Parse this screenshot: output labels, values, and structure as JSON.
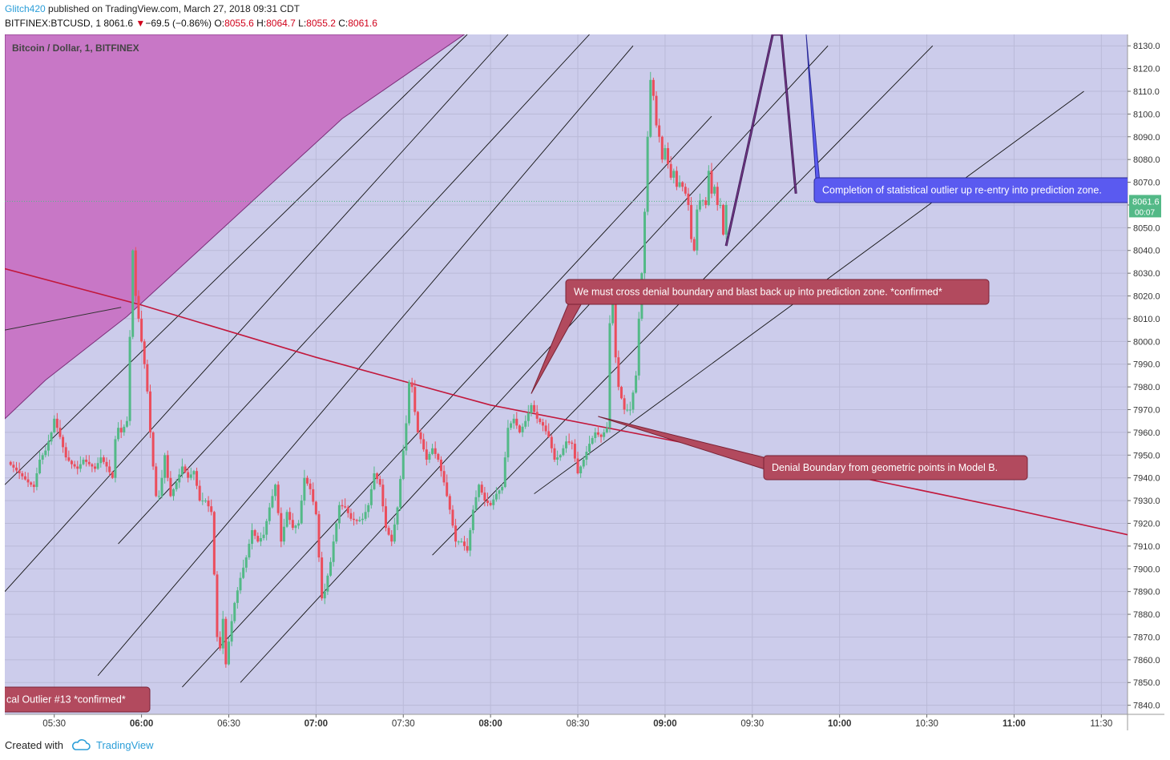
{
  "header": {
    "author": "Glitch420",
    "published_text": "published on TradingView.com, March 27, 2018 09:31 CDT",
    "symbol": "BITFINEX:BTCUSD, 1",
    "last": "8061.6",
    "change": "−69.5 (−0.86%)",
    "o_label": "O:",
    "o_value": "8055.6",
    "h_label": "H:",
    "h_value": "8064.7",
    "l_label": "L:",
    "l_value": "8055.2",
    "c_label": "C:",
    "c_value": "8061.6"
  },
  "footer": {
    "created_with": "Created with",
    "brand": "TradingView"
  },
  "colors": {
    "up": "#53b987",
    "down": "#eb4d5c",
    "background": "#cccceb",
    "magenta_zone": "#c877c6",
    "denial_line": "#c2183c",
    "price_badge": "#53b987",
    "callout_red": "#b24a5e",
    "callout_blue": "#5a5af0"
  },
  "chart_data": {
    "type": "candlestick",
    "title": "Bitcoin / Dollar, 1, BITFINEX",
    "ylim": [
      7836,
      8135
    ],
    "y_ticks": [
      "8130.0",
      "8120.0",
      "8110.0",
      "8100.0",
      "8090.0",
      "8080.0",
      "8070.0",
      "8060.0",
      "8050.0",
      "8040.0",
      "8030.0",
      "8020.0",
      "8010.0",
      "8000.0",
      "7990.0",
      "7980.0",
      "7970.0",
      "7960.0",
      "7950.0",
      "7940.0",
      "7930.0",
      "7920.0",
      "7910.0",
      "7900.0",
      "7890.0",
      "7880.0",
      "7870.0",
      "7860.0",
      "7850.0",
      "7840.0"
    ],
    "x_tick_labels": [
      "05:30",
      "06:00",
      "06:30",
      "07:00",
      "07:30",
      "08:00",
      "08:30",
      "09:00",
      "09:30",
      "10:00",
      "10:30",
      "11:00",
      "11:30"
    ],
    "x_range_minutes": [
      "05:13",
      "11:39"
    ],
    "bold_x_ticks": [
      "06:00",
      "07:00",
      "08:00",
      "09:00",
      "10:00",
      "11:00"
    ],
    "last_price": "8061.6",
    "countdown": "00:07",
    "close_path": [
      [
        "05:14",
        7947
      ],
      [
        "05:18",
        7942
      ],
      [
        "05:21",
        7938
      ],
      [
        "05:23",
        7936
      ],
      [
        "05:25",
        7948
      ],
      [
        "05:27",
        7952
      ],
      [
        "05:29",
        7960
      ],
      [
        "05:30",
        7966
      ],
      [
        "05:32",
        7958
      ],
      [
        "05:34",
        7949
      ],
      [
        "05:36",
        7946
      ],
      [
        "05:38",
        7944
      ],
      [
        "05:40",
        7948
      ],
      [
        "05:42",
        7946
      ],
      [
        "05:44",
        7944
      ],
      [
        "05:46",
        7949
      ],
      [
        "05:48",
        7945
      ],
      [
        "05:50",
        7940
      ],
      [
        "05:51",
        7957
      ],
      [
        "05:52",
        7962
      ],
      [
        "05:53",
        7960
      ],
      [
        "05:55",
        7965
      ],
      [
        "05:56",
        8002
      ],
      [
        "05:57",
        8040
      ],
      [
        "05:58",
        8020
      ],
      [
        "05:59",
        8010
      ],
      [
        "06:00",
        8000
      ],
      [
        "06:01",
        7990
      ],
      [
        "06:02",
        7978
      ],
      [
        "06:03",
        7960
      ],
      [
        "06:04",
        7945
      ],
      [
        "06:05",
        7932
      ],
      [
        "06:06",
        7932
      ],
      [
        "06:07",
        7940
      ],
      [
        "06:08",
        7950
      ],
      [
        "06:09",
        7940
      ],
      [
        "06:10",
        7932
      ],
      [
        "06:12",
        7938
      ],
      [
        "06:14",
        7945
      ],
      [
        "06:16",
        7940
      ],
      [
        "06:18",
        7943
      ],
      [
        "06:20",
        7930
      ],
      [
        "06:22",
        7930
      ],
      [
        "06:24",
        7925
      ],
      [
        "06:26",
        7870
      ],
      [
        "06:27",
        7865
      ],
      [
        "06:28",
        7878
      ],
      [
        "06:29",
        7858
      ],
      [
        "06:30",
        7868
      ],
      [
        "06:31",
        7877
      ],
      [
        "06:32",
        7885
      ],
      [
        "06:34",
        7896
      ],
      [
        "06:36",
        7905
      ],
      [
        "06:38",
        7917
      ],
      [
        "06:40",
        7912
      ],
      [
        "06:42",
        7915
      ],
      [
        "06:44",
        7927
      ],
      [
        "06:46",
        7937
      ],
      [
        "06:48",
        7912
      ],
      [
        "06:50",
        7925
      ],
      [
        "06:52",
        7918
      ],
      [
        "06:54",
        7920
      ],
      [
        "06:56",
        7940
      ],
      [
        "06:58",
        7935
      ],
      [
        "07:00",
        7924
      ],
      [
        "07:01",
        7905
      ],
      [
        "07:02",
        7887
      ],
      [
        "07:03",
        7890
      ],
      [
        "07:04",
        7897
      ],
      [
        "07:05",
        7903
      ],
      [
        "07:06",
        7912
      ],
      [
        "07:08",
        7928
      ],
      [
        "07:10",
        7927
      ],
      [
        "07:12",
        7922
      ],
      [
        "07:14",
        7921
      ],
      [
        "07:16",
        7922
      ],
      [
        "07:18",
        7928
      ],
      [
        "07:20",
        7942
      ],
      [
        "07:22",
        7937
      ],
      [
        "07:24",
        7918
      ],
      [
        "07:26",
        7912
      ],
      [
        "07:28",
        7927
      ],
      [
        "07:30",
        7952
      ],
      [
        "07:31",
        7964
      ],
      [
        "07:32",
        7982
      ],
      [
        "07:33",
        7980
      ],
      [
        "07:34",
        7969
      ],
      [
        "07:35",
        7960
      ],
      [
        "07:36",
        7957
      ],
      [
        "07:38",
        7948
      ],
      [
        "07:40",
        7953
      ],
      [
        "07:42",
        7948
      ],
      [
        "07:44",
        7938
      ],
      [
        "07:46",
        7926
      ],
      [
        "07:48",
        7912
      ],
      [
        "07:50",
        7912
      ],
      [
        "07:52",
        7908
      ],
      [
        "07:54",
        7926
      ],
      [
        "07:56",
        7937
      ],
      [
        "07:58",
        7930
      ],
      [
        "08:00",
        7928
      ],
      [
        "08:02",
        7933
      ],
      [
        "08:04",
        7936
      ],
      [
        "08:06",
        7962
      ],
      [
        "08:08",
        7966
      ],
      [
        "08:10",
        7960
      ],
      [
        "08:12",
        7965
      ],
      [
        "08:14",
        7972
      ],
      [
        "08:16",
        7966
      ],
      [
        "08:18",
        7963
      ],
      [
        "08:20",
        7958
      ],
      [
        "08:22",
        7948
      ],
      [
        "08:24",
        7950
      ],
      [
        "08:26",
        7956
      ],
      [
        "08:28",
        7955
      ],
      [
        "08:30",
        7942
      ],
      [
        "08:32",
        7948
      ],
      [
        "08:34",
        7955
      ],
      [
        "08:36",
        7960
      ],
      [
        "08:38",
        7958
      ],
      [
        "08:40",
        7962
      ],
      [
        "08:41",
        8008
      ],
      [
        "08:42",
        8018
      ],
      [
        "08:43",
        7993
      ],
      [
        "08:44",
        7980
      ],
      [
        "08:45",
        7975
      ],
      [
        "08:46",
        7970
      ],
      [
        "08:48",
        7970
      ],
      [
        "08:50",
        7985
      ],
      [
        "08:51",
        8010
      ],
      [
        "08:52",
        8030
      ],
      [
        "08:53",
        8057
      ],
      [
        "08:54",
        8090
      ],
      [
        "08:55",
        8115
      ],
      [
        "08:56",
        8108
      ],
      [
        "08:57",
        8095
      ],
      [
        "08:58",
        8090
      ],
      [
        "08:59",
        8080
      ],
      [
        "09:00",
        8085
      ],
      [
        "09:01",
        8078
      ],
      [
        "09:02",
        8072
      ],
      [
        "09:03",
        8075
      ],
      [
        "09:04",
        8068
      ],
      [
        "09:05",
        8070
      ],
      [
        "09:06",
        8068
      ],
      [
        "09:07",
        8065
      ],
      [
        "09:08",
        8060
      ],
      [
        "09:09",
        8045
      ],
      [
        "09:10",
        8040
      ],
      [
        "09:11",
        8058
      ],
      [
        "09:12",
        8062
      ],
      [
        "09:13",
        8062
      ],
      [
        "09:14",
        8060
      ],
      [
        "09:15",
        8075
      ],
      [
        "09:16",
        8065
      ],
      [
        "09:17",
        8068
      ],
      [
        "09:18",
        8060
      ],
      [
        "09:19",
        8060
      ],
      [
        "09:20",
        8047
      ],
      [
        "09:21",
        8060
      ]
    ],
    "overlays": {
      "magenta_zone_upper_edge": [
        [
          "05:13",
          7966
        ],
        [
          "05:27",
          7983
        ],
        [
          "05:55",
          8011
        ],
        [
          "07:09",
          8098
        ],
        [
          "07:51",
          8135
        ]
      ],
      "denial_boundary_line": [
        [
          "05:13",
          8032
        ],
        [
          "06:00",
          8016
        ],
        [
          "07:00",
          7993
        ],
        [
          "08:00",
          7972
        ],
        [
          "09:00",
          7957
        ],
        [
          "10:00",
          7942
        ],
        [
          "11:00",
          7926
        ],
        [
          "11:39",
          7915
        ]
      ],
      "upper_black_line": [
        [
          "05:13",
          8005
        ],
        [
          "05:53",
          8015
        ]
      ],
      "channel_lines": [
        [
          [
            "05:13",
            7937
          ],
          [
            "07:52",
            8135
          ]
        ],
        [
          [
            "05:13",
            7890
          ],
          [
            "08:06",
            8135
          ]
        ],
        [
          [
            "05:52",
            7911
          ],
          [
            "08:34",
            8135
          ]
        ],
        [
          [
            "05:45",
            7853
          ],
          [
            "08:49",
            8130
          ]
        ],
        [
          [
            "06:14",
            7848
          ],
          [
            "09:16",
            8099
          ]
        ],
        [
          [
            "06:34",
            7850
          ],
          [
            "09:56",
            8130
          ]
        ],
        [
          [
            "07:40",
            7906
          ],
          [
            "10:32",
            8130
          ]
        ],
        [
          [
            "08:15",
            7933
          ],
          [
            "11:24",
            8110
          ]
        ]
      ],
      "prediction_path": [
        [
          "09:21",
          8042
        ],
        [
          "09:37",
          8135
        ],
        [
          "09:40",
          8135
        ],
        [
          "09:45",
          8065
        ]
      ]
    },
    "annotations": [
      {
        "text": "We must cross denial boundary and blast back up into prediction zone. *confirmed*",
        "style": "red",
        "target": [
          "08:14",
          7977
        ]
      },
      {
        "text": "Completion of statistical outlier up re-entry into prediction zone.",
        "style": "blue"
      },
      {
        "text": "Denial Boundary from geometric points in Model B.",
        "style": "red",
        "target": [
          "08:37",
          7967
        ]
      },
      {
        "text": "cal Outlier #13 *confirmed*",
        "style": "red"
      }
    ]
  }
}
